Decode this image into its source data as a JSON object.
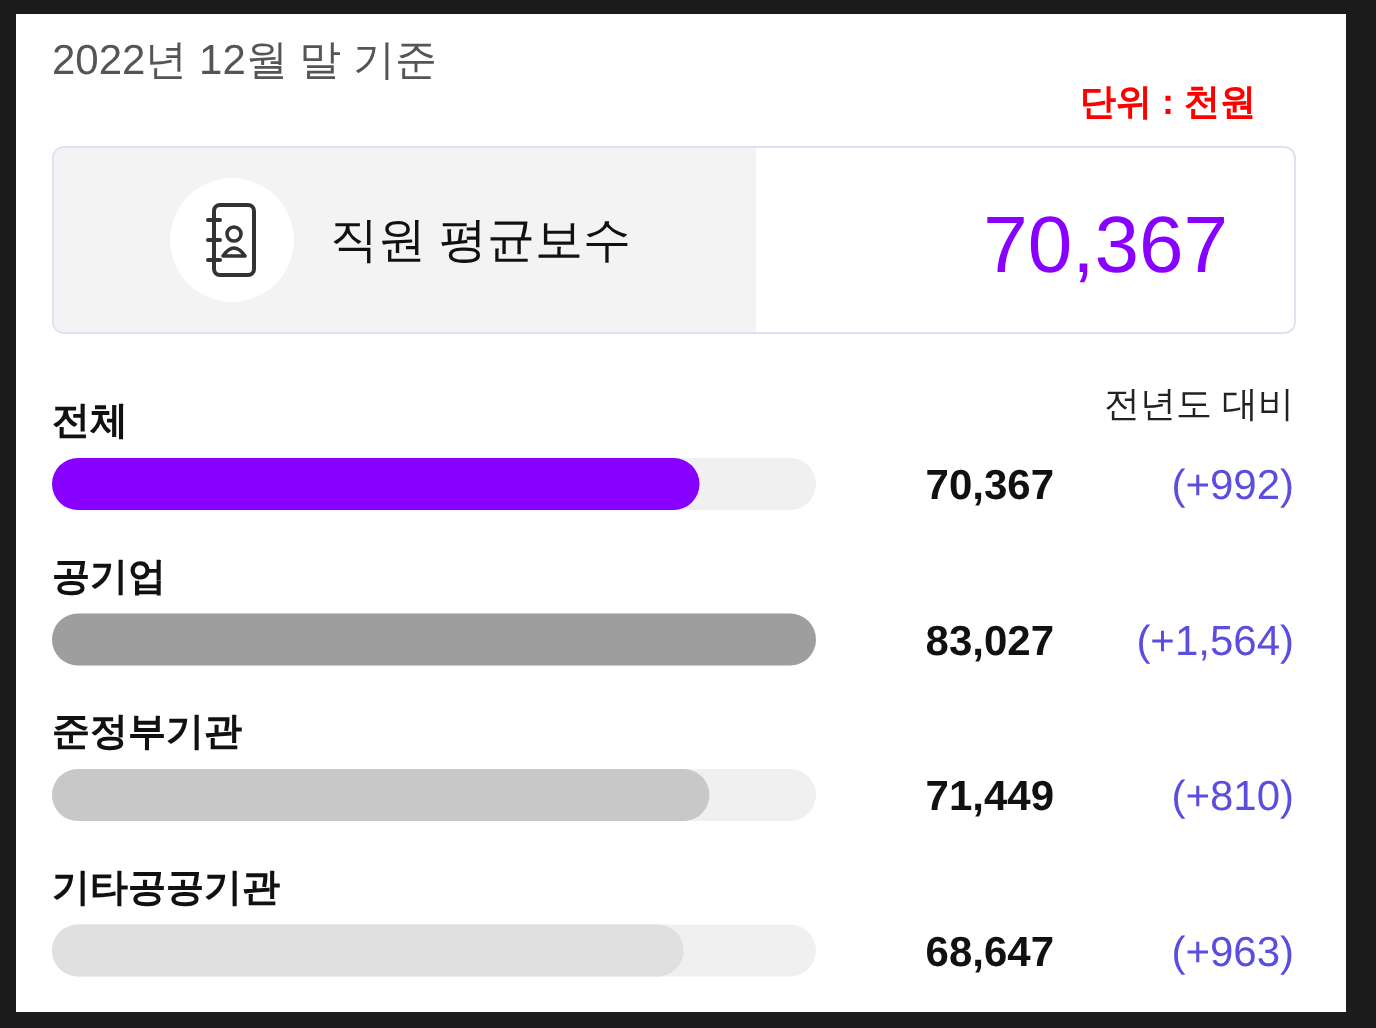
{
  "chart_data": {
    "type": "bar",
    "orientation": "horizontal",
    "title": "직원 평균보수",
    "subtitle": "2022년 12월 말 기준",
    "categories": [
      "전체",
      "공기업",
      "준정부기관",
      "기타공공기관"
    ],
    "values": [
      70367,
      83027,
      71449,
      68647
    ],
    "value_labels": [
      "70,367",
      "83,027",
      "71,449",
      "68,647"
    ],
    "colors": [
      "#8800ff",
      "#9e9e9e",
      "#c8c8c8",
      "#e0e0e0"
    ],
    "tick_labels": "y",
    "annotations": [
      "단위 : 천원",
      "70,367",
      "전년도 대비",
      "(+992)",
      "(+1,564)",
      "(+810)",
      "(+963)"
    ]
  }
}
